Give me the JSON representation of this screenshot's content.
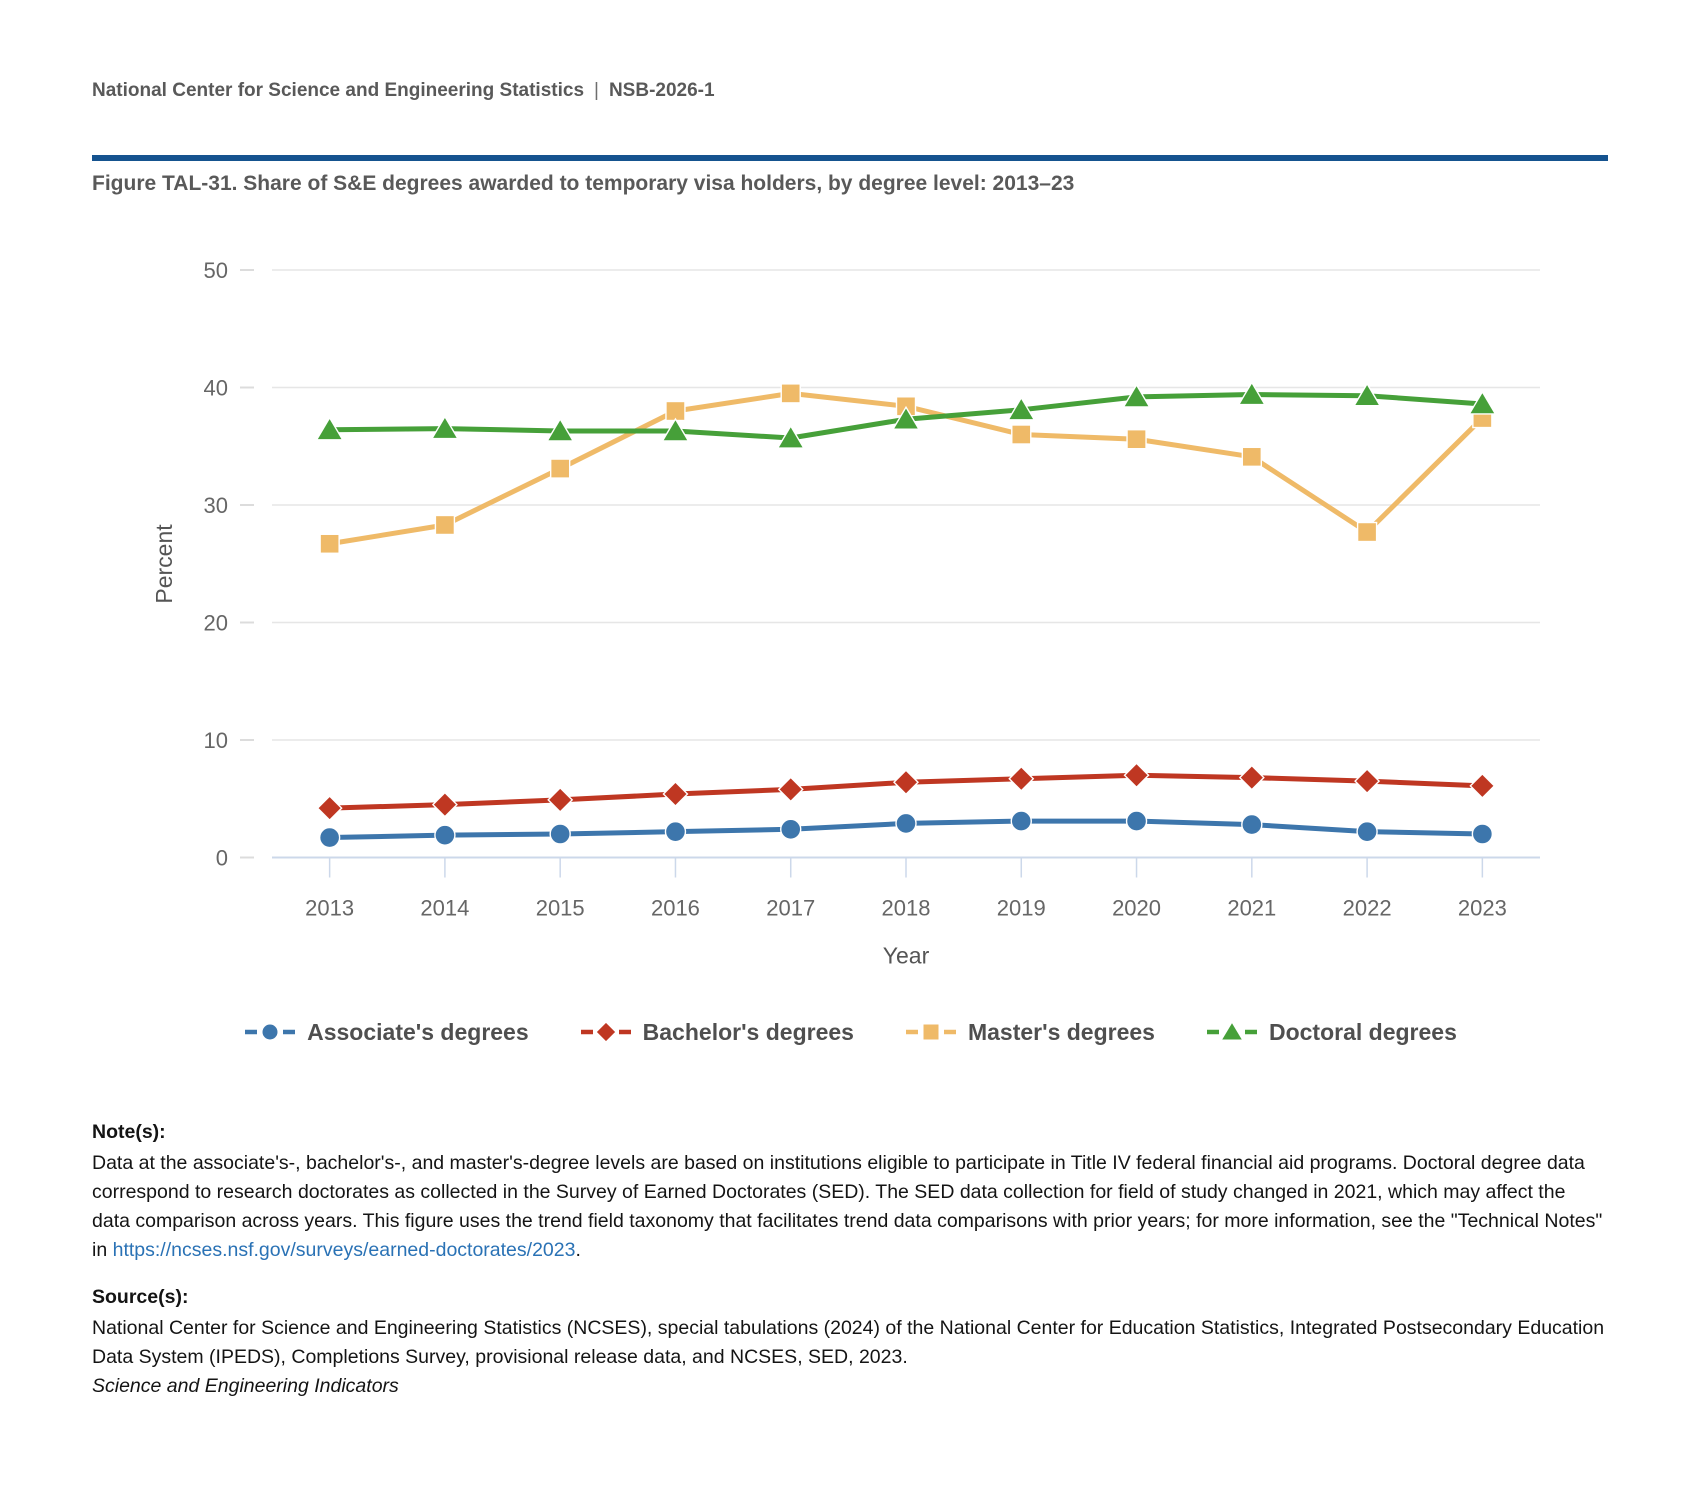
{
  "header": {
    "org": "National Center for Science and Engineering Statistics",
    "separator": "|",
    "report_id": "NSB-2026-1"
  },
  "figure": {
    "title": "Figure TAL-31. Share of S&E degrees awarded to temporary visa holders, by degree level: 2013–23"
  },
  "chart_data": {
    "type": "line",
    "title": "Share of S&E degrees awarded to temporary visa holders, by degree level: 2013–23",
    "xlabel": "Year",
    "ylabel": "Percent",
    "ylim": [
      0,
      50
    ],
    "ytick_interval": 10,
    "grid": true,
    "legend_position": "bottom",
    "categories": [
      "2013",
      "2014",
      "2015",
      "2016",
      "2017",
      "2018",
      "2019",
      "2020",
      "2021",
      "2022",
      "2023"
    ],
    "series": [
      {
        "name": "Associate's degrees",
        "marker": "circle",
        "color": "#3d76ac",
        "values": [
          1.7,
          1.9,
          2.0,
          2.2,
          2.4,
          2.9,
          3.1,
          3.1,
          2.8,
          2.2,
          2.0
        ]
      },
      {
        "name": "Bachelor's degrees",
        "marker": "diamond",
        "color": "#bf3722",
        "values": [
          4.2,
          4.5,
          4.9,
          5.4,
          5.8,
          6.4,
          6.7,
          7.0,
          6.8,
          6.5,
          6.1
        ]
      },
      {
        "name": "Master's degrees",
        "marker": "square",
        "color": "#efba68",
        "values": [
          26.7,
          28.3,
          33.1,
          38.0,
          39.5,
          38.4,
          36.0,
          35.6,
          34.1,
          27.7,
          37.4
        ]
      },
      {
        "name": "Doctoral degrees",
        "marker": "triangle",
        "color": "#46a039",
        "values": [
          36.4,
          36.5,
          36.3,
          36.3,
          35.7,
          37.3,
          38.1,
          39.2,
          39.4,
          39.3,
          38.6
        ]
      }
    ],
    "axis_colors": {
      "gridline": "#e6e6e6",
      "axis_line": "#ccd8ea",
      "tick_label": "#666666",
      "axis_title": "#555555"
    }
  },
  "notes": {
    "label": "Note(s):",
    "text_before_link": "Data at the associate's-, bachelor's-, and master's-degree levels are based on institutions eligible to participate in Title IV federal financial aid programs. Doctoral degree data correspond to research doctorates as collected in the Survey of Earned Doctorates (SED). The SED data collection for field of study changed in 2021, which may affect the data comparison across years. This figure uses the trend field taxonomy that facilitates trend data comparisons with prior years; for more information, see the \"Technical Notes\" in ",
    "link_text": "https://ncses.nsf.gov/surveys/earned-doctorates/2023",
    "text_after_link": "."
  },
  "sources": {
    "label": "Source(s):",
    "text": "National Center for Science and Engineering Statistics (NCSES), special tabulations (2024) of the National Center for Education Statistics, Integrated Postsecondary Education Data System (IPEDS), Completions Survey, provisional release data, and NCSES, SED, 2023."
  },
  "footer": {
    "italic_text": "Science and Engineering Indicators"
  },
  "colors": {
    "rule_blue": "#15538f",
    "heading_gray": "#595959",
    "link_blue": "#2a72b5"
  }
}
